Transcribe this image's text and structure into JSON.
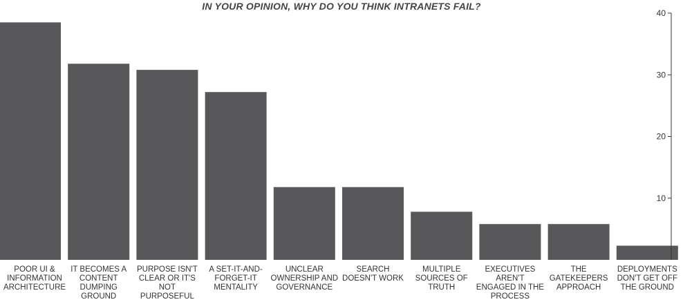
{
  "chart_data": {
    "type": "bar",
    "title": "IN YOUR OPINION, WHY DO YOU THINK INTRANETS FAIL?",
    "categories": [
      "POOR UI & INFORMATION ARCHITECTURE",
      "IT BECOMES A CONTENT DUMPING GROUND",
      "PURPOSE ISN'T CLEAR OR IT'S NOT PURPOSEFUL",
      "A SET-IT-AND-FORGET-IT MENTALITY",
      "UNCLEAR OWNERSHIP AND GOVERNANCE",
      "SEARCH DOESN'T WORK",
      "MULTIPLE SOURCES OF TRUTH",
      "EXECUTIVES AREN'T ENGAGED IN THE PROCESS",
      "THE GATEKEEPERS APPROACH",
      "DEPLOYMENTS DON'T GET OFF THE GROUND"
    ],
    "values": [
      38.5,
      31.8,
      30.8,
      27.2,
      11.8,
      11.8,
      7.8,
      5.8,
      5.8,
      2.3
    ],
    "ylim": [
      0,
      40
    ],
    "yticks": [
      10,
      20,
      30,
      40
    ],
    "xlabel": "",
    "ylabel": "",
    "axis_position": "right",
    "grid": false,
    "bar_color": "#58585a",
    "axis_color": "#333333"
  }
}
